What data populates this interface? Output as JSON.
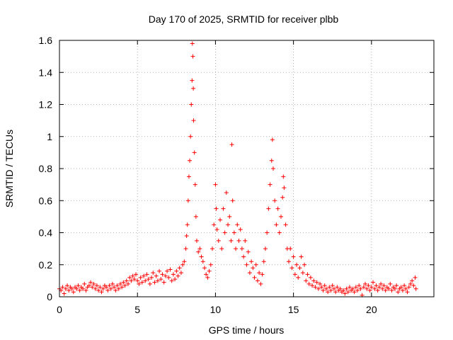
{
  "chart_data": {
    "type": "scatter",
    "title": "Day 170 of 2025, SRMTID for receiver plbb",
    "xlabel": "GPS time / hours",
    "ylabel": "SRMTID / TECUs",
    "xlim": [
      0,
      24
    ],
    "ylim": [
      0,
      1.6
    ],
    "x_ticks": [
      0,
      5,
      10,
      15,
      20
    ],
    "x_tick_labels": [
      "0",
      "5",
      "10",
      "15",
      "20"
    ],
    "y_ticks": [
      0,
      0.2,
      0.4,
      0.6,
      0.8,
      1.0,
      1.2,
      1.4,
      1.6
    ],
    "y_tick_labels": [
      "0",
      "0.2",
      "0.4",
      "0.6",
      "0.8",
      "1",
      "1.2",
      "1.4",
      "1.6"
    ],
    "grid": true,
    "marker": "plus",
    "color": "#ff0000",
    "series": [
      {
        "name": "SRMTID",
        "points": [
          [
            0.0,
            0.05
          ],
          [
            0.1,
            0.04
          ],
          [
            0.2,
            0.06
          ],
          [
            0.3,
            0.02
          ],
          [
            0.4,
            0.05
          ],
          [
            0.5,
            0.07
          ],
          [
            0.6,
            0.04
          ],
          [
            0.7,
            0.06
          ],
          [
            0.8,
            0.05
          ],
          [
            0.9,
            0.03
          ],
          [
            1.0,
            0.06
          ],
          [
            1.1,
            0.05
          ],
          [
            1.2,
            0.07
          ],
          [
            1.3,
            0.04
          ],
          [
            1.4,
            0.06
          ],
          [
            1.5,
            0.05
          ],
          [
            1.6,
            0.08
          ],
          [
            1.7,
            0.04
          ],
          [
            1.8,
            0.06
          ],
          [
            1.9,
            0.07
          ],
          [
            2.0,
            0.09
          ],
          [
            2.1,
            0.06
          ],
          [
            2.2,
            0.08
          ],
          [
            2.3,
            0.05
          ],
          [
            2.4,
            0.07
          ],
          [
            2.5,
            0.04
          ],
          [
            2.6,
            0.06
          ],
          [
            2.7,
            0.03
          ],
          [
            2.8,
            0.05
          ],
          [
            2.9,
            0.07
          ],
          [
            3.0,
            0.06
          ],
          [
            3.1,
            0.04
          ],
          [
            3.2,
            0.07
          ],
          [
            3.3,
            0.05
          ],
          [
            3.4,
            0.08
          ],
          [
            3.5,
            0.06
          ],
          [
            3.6,
            0.04
          ],
          [
            3.7,
            0.07
          ],
          [
            3.8,
            0.05
          ],
          [
            3.9,
            0.08
          ],
          [
            4.0,
            0.06
          ],
          [
            4.1,
            0.09
          ],
          [
            4.2,
            0.07
          ],
          [
            4.3,
            0.1
          ],
          [
            4.4,
            0.08
          ],
          [
            4.5,
            0.12
          ],
          [
            4.6,
            0.1
          ],
          [
            4.7,
            0.13
          ],
          [
            4.8,
            0.11
          ],
          [
            4.9,
            0.14
          ],
          [
            5.0,
            0.1
          ],
          [
            5.1,
            0.08
          ],
          [
            5.2,
            0.12
          ],
          [
            5.3,
            0.09
          ],
          [
            5.4,
            0.13
          ],
          [
            5.5,
            0.1
          ],
          [
            5.6,
            0.14
          ],
          [
            5.7,
            0.11
          ],
          [
            5.8,
            0.08
          ],
          [
            5.9,
            0.12
          ],
          [
            6.0,
            0.15
          ],
          [
            6.1,
            0.09
          ],
          [
            6.2,
            0.13
          ],
          [
            6.3,
            0.1
          ],
          [
            6.4,
            0.16
          ],
          [
            6.5,
            0.11
          ],
          [
            6.6,
            0.14
          ],
          [
            6.7,
            0.09
          ],
          [
            6.8,
            0.13
          ],
          [
            6.9,
            0.16
          ],
          [
            7.0,
            0.12
          ],
          [
            7.1,
            0.17
          ],
          [
            7.2,
            0.1
          ],
          [
            7.3,
            0.14
          ],
          [
            7.4,
            0.11
          ],
          [
            7.5,
            0.16
          ],
          [
            7.6,
            0.13
          ],
          [
            7.7,
            0.18
          ],
          [
            7.8,
            0.15
          ],
          [
            7.9,
            0.2
          ],
          [
            8.0,
            0.22
          ],
          [
            8.1,
            0.3
          ],
          [
            8.15,
            0.38
          ],
          [
            8.2,
            0.45
          ],
          [
            8.25,
            0.6
          ],
          [
            8.3,
            0.75
          ],
          [
            8.35,
            0.85
          ],
          [
            8.4,
            1.0
          ],
          [
            8.45,
            1.2
          ],
          [
            8.5,
            1.35
          ],
          [
            8.52,
            1.58
          ],
          [
            8.55,
            1.5
          ],
          [
            8.58,
            1.3
          ],
          [
            8.6,
            1.1
          ],
          [
            8.65,
            0.9
          ],
          [
            8.7,
            0.7
          ],
          [
            8.75,
            0.5
          ],
          [
            8.8,
            0.35
          ],
          [
            8.9,
            0.28
          ],
          [
            9.0,
            0.3
          ],
          [
            9.1,
            0.25
          ],
          [
            9.2,
            0.22
          ],
          [
            9.3,
            0.18
          ],
          [
            9.4,
            0.14
          ],
          [
            9.5,
            0.12
          ],
          [
            9.6,
            0.16
          ],
          [
            9.7,
            0.2
          ],
          [
            9.8,
            0.3
          ],
          [
            9.9,
            0.45
          ],
          [
            10.0,
            0.7
          ],
          [
            10.05,
            0.55
          ],
          [
            10.1,
            0.42
          ],
          [
            10.2,
            0.35
          ],
          [
            10.3,
            0.48
          ],
          [
            10.4,
            0.3
          ],
          [
            10.5,
            0.55
          ],
          [
            10.6,
            0.4
          ],
          [
            10.7,
            0.65
          ],
          [
            10.8,
            0.45
          ],
          [
            10.9,
            0.5
          ],
          [
            11.0,
            0.35
          ],
          [
            11.05,
            0.95
          ],
          [
            11.1,
            0.6
          ],
          [
            11.2,
            0.4
          ],
          [
            11.3,
            0.3
          ],
          [
            11.4,
            0.45
          ],
          [
            11.5,
            0.35
          ],
          [
            11.6,
            0.42
          ],
          [
            11.7,
            0.3
          ],
          [
            11.8,
            0.25
          ],
          [
            11.9,
            0.35
          ],
          [
            12.0,
            0.2
          ],
          [
            12.1,
            0.28
          ],
          [
            12.2,
            0.15
          ],
          [
            12.3,
            0.22
          ],
          [
            12.4,
            0.18
          ],
          [
            12.5,
            0.12
          ],
          [
            12.6,
            0.2
          ],
          [
            12.7,
            0.1
          ],
          [
            12.8,
            0.15
          ],
          [
            12.9,
            0.08
          ],
          [
            13.0,
            0.14
          ],
          [
            13.1,
            0.22
          ],
          [
            13.2,
            0.3
          ],
          [
            13.3,
            0.4
          ],
          [
            13.4,
            0.55
          ],
          [
            13.5,
            0.7
          ],
          [
            13.6,
            0.85
          ],
          [
            13.65,
            0.98
          ],
          [
            13.7,
            0.8
          ],
          [
            13.8,
            0.6
          ],
          [
            13.9,
            0.45
          ],
          [
            14.0,
            0.55
          ],
          [
            14.1,
            0.4
          ],
          [
            14.2,
            0.5
          ],
          [
            14.3,
            0.62
          ],
          [
            14.35,
            0.75
          ],
          [
            14.4,
            0.68
          ],
          [
            14.5,
            0.45
          ],
          [
            14.6,
            0.3
          ],
          [
            14.7,
            0.22
          ],
          [
            14.8,
            0.3
          ],
          [
            14.9,
            0.18
          ],
          [
            15.0,
            0.25
          ],
          [
            15.1,
            0.14
          ],
          [
            15.2,
            0.2
          ],
          [
            15.3,
            0.12
          ],
          [
            15.4,
            0.18
          ],
          [
            15.5,
            0.25
          ],
          [
            15.6,
            0.15
          ],
          [
            15.7,
            0.2
          ],
          [
            15.8,
            0.1
          ],
          [
            15.9,
            0.14
          ],
          [
            16.0,
            0.08
          ],
          [
            16.1,
            0.12
          ],
          [
            16.2,
            0.07
          ],
          [
            16.3,
            0.1
          ],
          [
            16.4,
            0.06
          ],
          [
            16.5,
            0.09
          ],
          [
            16.6,
            0.05
          ],
          [
            16.7,
            0.08
          ],
          [
            16.8,
            0.06
          ],
          [
            16.9,
            0.04
          ],
          [
            17.0,
            0.07
          ],
          [
            17.1,
            0.05
          ],
          [
            17.2,
            0.03
          ],
          [
            17.3,
            0.06
          ],
          [
            17.4,
            0.04
          ],
          [
            17.5,
            0.07
          ],
          [
            17.6,
            0.05
          ],
          [
            17.7,
            0.03
          ],
          [
            17.8,
            0.06
          ],
          [
            17.9,
            0.04
          ],
          [
            18.0,
            0.05
          ],
          [
            18.1,
            0.03
          ],
          [
            18.2,
            0.04
          ],
          [
            18.3,
            0.02
          ],
          [
            18.4,
            0.05
          ],
          [
            18.5,
            0.03
          ],
          [
            18.6,
            0.06
          ],
          [
            18.7,
            0.04
          ],
          [
            18.8,
            0.05
          ],
          [
            18.9,
            0.03
          ],
          [
            19.0,
            0.06
          ],
          [
            19.1,
            0.04
          ],
          [
            19.2,
            0.07
          ],
          [
            19.3,
            0.05
          ],
          [
            19.4,
            0.01
          ],
          [
            19.5,
            0.06
          ],
          [
            19.6,
            0.08
          ],
          [
            19.7,
            0.05
          ],
          [
            19.8,
            0.07
          ],
          [
            19.9,
            0.04
          ],
          [
            20.0,
            0.06
          ],
          [
            20.1,
            0.09
          ],
          [
            20.2,
            0.05
          ],
          [
            20.3,
            0.07
          ],
          [
            20.4,
            0.04
          ],
          [
            20.5,
            0.06
          ],
          [
            20.6,
            0.08
          ],
          [
            20.7,
            0.05
          ],
          [
            20.8,
            0.07
          ],
          [
            20.9,
            0.04
          ],
          [
            21.0,
            0.06
          ],
          [
            21.1,
            0.05
          ],
          [
            21.2,
            0.08
          ],
          [
            21.3,
            0.04
          ],
          [
            21.4,
            0.06
          ],
          [
            21.5,
            0.05
          ],
          [
            21.6,
            0.07
          ],
          [
            21.7,
            0.03
          ],
          [
            21.8,
            0.05
          ],
          [
            21.9,
            0.06
          ],
          [
            22.0,
            0.04
          ],
          [
            22.1,
            0.07
          ],
          [
            22.2,
            0.05
          ],
          [
            22.3,
            0.03
          ],
          [
            22.4,
            0.06
          ],
          [
            22.5,
            0.08
          ],
          [
            22.6,
            0.1
          ],
          [
            22.7,
            0.07
          ],
          [
            22.8,
            0.12
          ],
          [
            22.85,
            0.05
          ]
        ]
      }
    ]
  }
}
